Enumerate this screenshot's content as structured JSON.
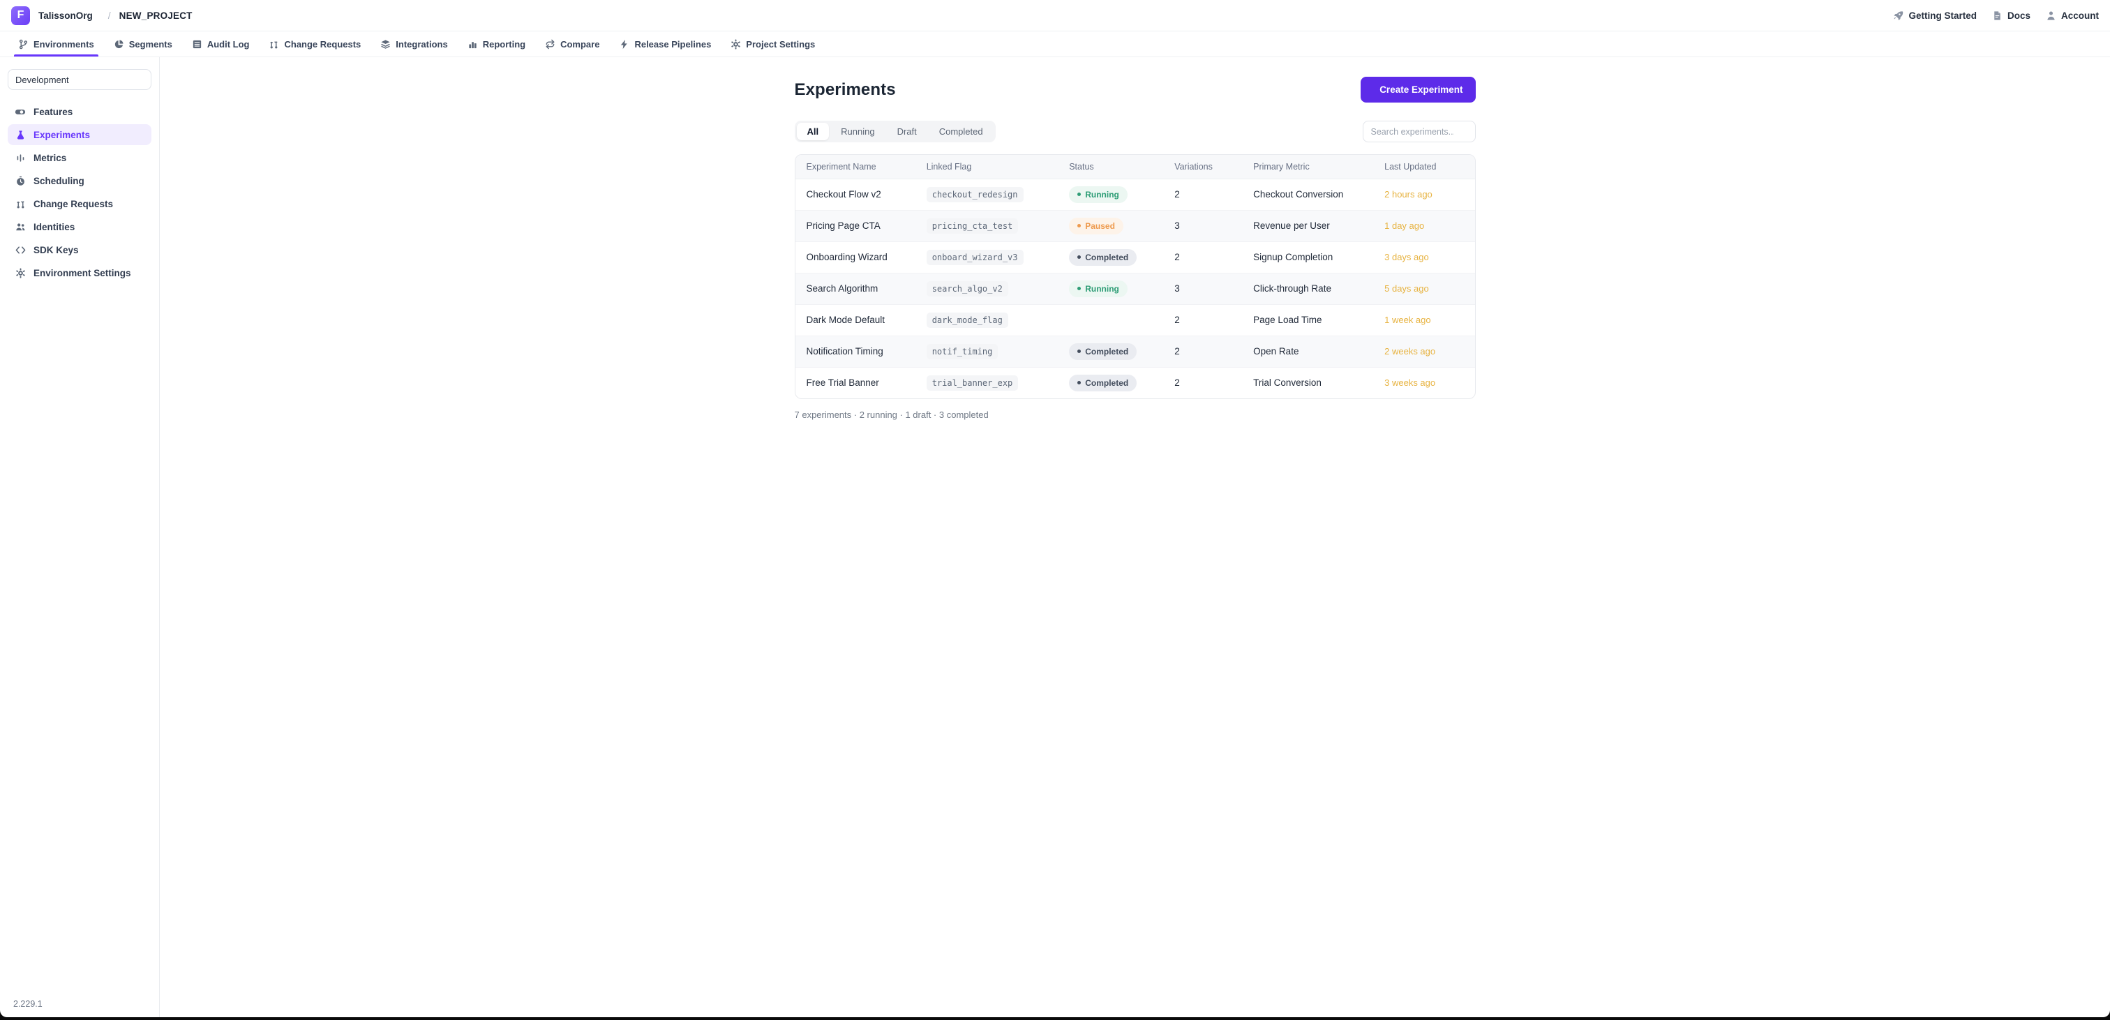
{
  "app": {
    "logo_letter": "F",
    "org_name": "TalissonOrg",
    "breadcrumb_separator": "/",
    "project_name": "NEW_PROJECT",
    "version": "2.229.1"
  },
  "topbar_links": [
    {
      "label": "Getting Started",
      "icon": "rocket"
    },
    {
      "label": "Docs",
      "icon": "doc"
    },
    {
      "label": "Account",
      "icon": "person"
    }
  ],
  "nav_tabs": [
    {
      "label": "Environments",
      "icon": "branch",
      "active": true
    },
    {
      "label": "Segments",
      "icon": "pie",
      "active": false
    },
    {
      "label": "Audit Log",
      "icon": "list",
      "active": false
    },
    {
      "label": "Change Requests",
      "icon": "pr",
      "active": false
    },
    {
      "label": "Integrations",
      "icon": "layers",
      "active": false
    },
    {
      "label": "Reporting",
      "icon": "bars",
      "active": false
    },
    {
      "label": "Compare",
      "icon": "compare",
      "active": false
    },
    {
      "label": "Release Pipelines",
      "icon": "bolt",
      "active": false
    },
    {
      "label": "Project Settings",
      "icon": "gear",
      "active": false
    }
  ],
  "sidebar": {
    "environment_selector": "Development",
    "items": [
      {
        "label": "Features",
        "icon": "toggle",
        "active": false
      },
      {
        "label": "Experiments",
        "icon": "flask",
        "active": true
      },
      {
        "label": "Metrics",
        "icon": "metrics",
        "active": false
      },
      {
        "label": "Scheduling",
        "icon": "clock",
        "active": false
      },
      {
        "label": "Change Requests",
        "icon": "pr",
        "active": false
      },
      {
        "label": "Identities",
        "icon": "people",
        "active": false
      },
      {
        "label": "SDK Keys",
        "icon": "code",
        "active": false
      },
      {
        "label": "Environment Settings",
        "icon": "gear",
        "active": false
      }
    ]
  },
  "main": {
    "title": "Experiments",
    "create_button_label": "Create Experiment",
    "filter_tabs": [
      {
        "label": "All",
        "active": true
      },
      {
        "label": "Running",
        "active": false
      },
      {
        "label": "Draft",
        "active": false
      },
      {
        "label": "Completed",
        "active": false
      }
    ],
    "search": {
      "placeholder": "Search experiments..."
    },
    "table": {
      "columns": [
        "Experiment Name",
        "Linked Flag",
        "Status",
        "Variations",
        "Primary Metric",
        "Last Updated"
      ],
      "rows": [
        {
          "name": "Checkout Flow v2",
          "flag": "checkout_redesign",
          "status": "Running",
          "variations": "2",
          "metric": "Checkout Conversion",
          "updated": "2 hours ago"
        },
        {
          "name": "Pricing Page CTA",
          "flag": "pricing_cta_test",
          "status": "Paused",
          "variations": "3",
          "metric": "Revenue per User",
          "updated": "1 day ago"
        },
        {
          "name": "Onboarding Wizard",
          "flag": "onboard_wizard_v3",
          "status": "Completed",
          "variations": "2",
          "metric": "Signup Completion",
          "updated": "3 days ago"
        },
        {
          "name": "Search Algorithm",
          "flag": "search_algo_v2",
          "status": "Running",
          "variations": "3",
          "metric": "Click-through Rate",
          "updated": "5 days ago"
        },
        {
          "name": "Dark Mode Default",
          "flag": "dark_mode_flag",
          "status": "",
          "variations": "2",
          "metric": "Page Load Time",
          "updated": "1 week ago"
        },
        {
          "name": "Notification Timing",
          "flag": "notif_timing",
          "status": "Completed",
          "variations": "2",
          "metric": "Open Rate",
          "updated": "2 weeks ago"
        },
        {
          "name": "Free Trial Banner",
          "flag": "trial_banner_exp",
          "status": "Completed",
          "variations": "2",
          "metric": "Trial Conversion",
          "updated": "3 weeks ago"
        }
      ]
    },
    "summary": "7 experiments · 2 running · 1 draft · 3 completed"
  },
  "colors": {
    "accent": "#6837fc",
    "create_button": "#5d2be9",
    "status_running": "#2e9d76",
    "status_paused": "#ee9a4d",
    "status_completed": "#434d5d",
    "last_updated": "#e7b341"
  }
}
